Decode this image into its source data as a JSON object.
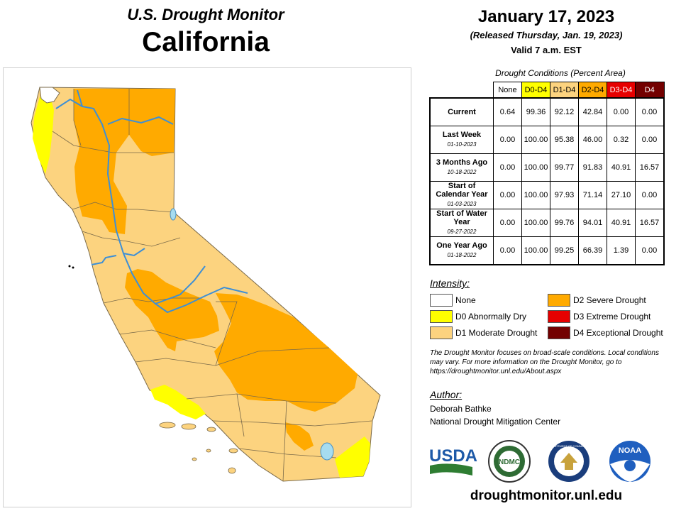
{
  "header": {
    "source_title": "U.S. Drought Monitor",
    "region": "California",
    "date": "January 17, 2023",
    "released": "(Released Thursday, Jan. 19, 2023)",
    "valid": "Valid 7 a.m. EST"
  },
  "table": {
    "caption": "Drought Conditions (Percent Area)",
    "columns": [
      "None",
      "D0-D4",
      "D1-D4",
      "D2-D4",
      "D3-D4",
      "D4"
    ],
    "column_colors": [
      "#ffffff",
      "#ffff00",
      "#fcd37f",
      "#ffaa00",
      "#e60000",
      "#730000"
    ],
    "rows": [
      {
        "label": "Current",
        "date": "",
        "values": [
          "0.64",
          "99.36",
          "92.12",
          "42.84",
          "0.00",
          "0.00"
        ]
      },
      {
        "label": "Last Week",
        "date": "01-10-2023",
        "values": [
          "0.00",
          "100.00",
          "95.38",
          "46.00",
          "0.32",
          "0.00"
        ]
      },
      {
        "label": "3 Months Ago",
        "date": "10-18-2022",
        "values": [
          "0.00",
          "100.00",
          "99.77",
          "91.83",
          "40.91",
          "16.57"
        ]
      },
      {
        "label": "Start of Calendar Year",
        "date": "01-03-2023",
        "values": [
          "0.00",
          "100.00",
          "97.93",
          "71.14",
          "27.10",
          "0.00"
        ]
      },
      {
        "label": "Start of Water Year",
        "date": "09-27-2022",
        "values": [
          "0.00",
          "100.00",
          "99.76",
          "94.01",
          "40.91",
          "16.57"
        ]
      },
      {
        "label": "One Year Ago",
        "date": "01-18-2022",
        "values": [
          "0.00",
          "100.00",
          "99.25",
          "66.39",
          "1.39",
          "0.00"
        ]
      }
    ]
  },
  "legend": {
    "title": "Intensity:",
    "items": [
      {
        "label": "None",
        "color": "#ffffff"
      },
      {
        "label": "D0 Abnormally Dry",
        "color": "#ffff00"
      },
      {
        "label": "D1 Moderate Drought",
        "color": "#fcd37f"
      },
      {
        "label": "D2 Severe Drought",
        "color": "#ffaa00"
      },
      {
        "label": "D3 Extreme Drought",
        "color": "#e60000"
      },
      {
        "label": "D4 Exceptional Drought",
        "color": "#730000"
      }
    ]
  },
  "note": "The Drought Monitor focuses on broad-scale conditions. Local conditions may vary. For more information on the Drought Monitor, go to https://droughtmonitor.unl.edu/About.aspx",
  "author": {
    "title": "Author:",
    "name": "Deborah Bathke",
    "org": "National Drought Mitigation Center"
  },
  "logos": {
    "usda": "USDA",
    "ndmc": "NDMC",
    "noaa": "NOAA",
    "commerce": "DEPARTMENT OF COMMERCE"
  },
  "website": "droughtmonitor.unl.edu"
}
